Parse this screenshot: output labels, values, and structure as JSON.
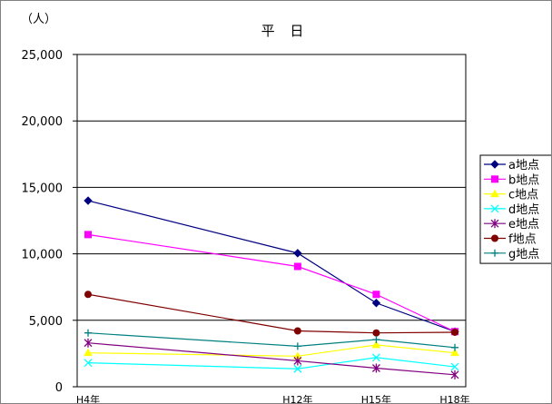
{
  "chart_data": {
    "type": "line",
    "title": "平 日",
    "ylabel": "（人）",
    "xlabel": "",
    "ylim": [
      0,
      25000
    ],
    "yticks": [
      0,
      5000,
      10000,
      15000,
      20000,
      25000
    ],
    "ytick_labels": [
      "0",
      "5,000",
      "10,000",
      "15,000",
      "20,000",
      "25,000"
    ],
    "grid": true,
    "legend_position": "right",
    "x": [
      4,
      12,
      15,
      18
    ],
    "categories": [
      "H4年",
      "H12年",
      "H15年",
      "H18年"
    ],
    "series": [
      {
        "name": "a地点",
        "color": "#000080",
        "marker": "diamond",
        "values": [
          14000,
          10050,
          6300,
          4150
        ]
      },
      {
        "name": "b地点",
        "color": "#ff00ff",
        "marker": "square",
        "values": [
          11450,
          9050,
          6950,
          4150
        ]
      },
      {
        "name": "c地点",
        "color": "#ffff00",
        "marker": "triangle",
        "values": [
          2550,
          2300,
          3150,
          2550
        ]
      },
      {
        "name": "d地点",
        "color": "#00ffff",
        "marker": "x",
        "values": [
          1800,
          1350,
          2200,
          1500
        ]
      },
      {
        "name": "e地点",
        "color": "#800080",
        "marker": "star",
        "values": [
          3300,
          1950,
          1400,
          900
        ]
      },
      {
        "name": "f地点",
        "color": "#800000",
        "marker": "circle",
        "values": [
          6950,
          4200,
          4050,
          4100
        ]
      },
      {
        "name": "g地点",
        "color": "#008080",
        "marker": "plus",
        "values": [
          4050,
          3050,
          3550,
          2950
        ]
      }
    ]
  }
}
